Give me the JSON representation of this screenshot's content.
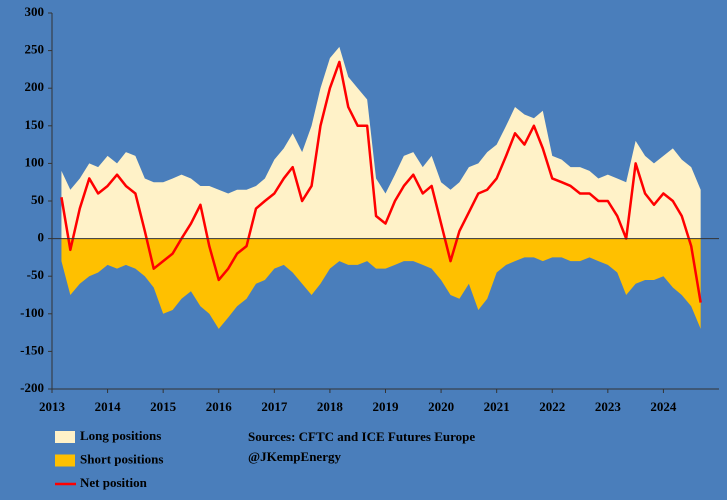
{
  "chart_data": {
    "type": "area-line",
    "x": [
      2013.17,
      2013.33,
      2013.5,
      2013.67,
      2013.83,
      2014.0,
      2014.17,
      2014.33,
      2014.5,
      2014.67,
      2014.83,
      2015.0,
      2015.17,
      2015.33,
      2015.5,
      2015.67,
      2015.83,
      2016.0,
      2016.17,
      2016.33,
      2016.5,
      2016.67,
      2016.83,
      2017.0,
      2017.17,
      2017.33,
      2017.5,
      2017.67,
      2017.83,
      2018.0,
      2018.17,
      2018.33,
      2018.5,
      2018.67,
      2018.83,
      2019.0,
      2019.17,
      2019.33,
      2019.5,
      2019.67,
      2019.83,
      2020.0,
      2020.17,
      2020.33,
      2020.5,
      2020.67,
      2020.83,
      2021.0,
      2021.17,
      2021.33,
      2021.5,
      2021.67,
      2021.83,
      2022.0,
      2022.17,
      2022.33,
      2022.5,
      2022.67,
      2022.83,
      2023.0,
      2023.17,
      2023.33,
      2023.5,
      2023.67,
      2023.83,
      2024.0,
      2024.17,
      2024.33,
      2024.5,
      2024.67
    ],
    "series": [
      {
        "name": "Long positions",
        "color": "#fff2c8",
        "kind": "area",
        "values": [
          90,
          65,
          80,
          100,
          95,
          110,
          100,
          115,
          110,
          80,
          75,
          75,
          80,
          85,
          80,
          70,
          70,
          65,
          60,
          65,
          65,
          70,
          80,
          105,
          120,
          140,
          115,
          150,
          200,
          240,
          255,
          215,
          200,
          185,
          80,
          60,
          85,
          110,
          115,
          95,
          110,
          75,
          65,
          75,
          95,
          100,
          115,
          125,
          150,
          175,
          165,
          160,
          170,
          110,
          105,
          95,
          95,
          90,
          80,
          85,
          80,
          75,
          130,
          110,
          100,
          110,
          120,
          105,
          95,
          65
        ]
      },
      {
        "name": "Short positions",
        "color": "#ffc000",
        "kind": "area",
        "values": [
          -30,
          -75,
          -60,
          -50,
          -45,
          -35,
          -40,
          -35,
          -40,
          -50,
          -65,
          -100,
          -95,
          -80,
          -70,
          -90,
          -100,
          -120,
          -105,
          -90,
          -80,
          -60,
          -55,
          -40,
          -35,
          -45,
          -60,
          -75,
          -60,
          -40,
          -30,
          -35,
          -35,
          -30,
          -40,
          -40,
          -35,
          -30,
          -30,
          -35,
          -40,
          -55,
          -75,
          -80,
          -60,
          -95,
          -80,
          -45,
          -35,
          -30,
          -25,
          -25,
          -30,
          -25,
          -25,
          -30,
          -30,
          -25,
          -30,
          -35,
          -45,
          -75,
          -60,
          -55,
          -55,
          -50,
          -65,
          -75,
          -90,
          -120
        ]
      },
      {
        "name": "Net position",
        "color": "#ff0000",
        "kind": "line",
        "values": [
          55,
          -15,
          40,
          80,
          60,
          70,
          85,
          70,
          60,
          10,
          -40,
          -30,
          -20,
          0,
          20,
          45,
          -10,
          -55,
          -40,
          -20,
          -10,
          40,
          50,
          60,
          80,
          95,
          50,
          70,
          150,
          200,
          235,
          175,
          150,
          150,
          30,
          20,
          50,
          70,
          85,
          60,
          70,
          20,
          -30,
          10,
          35,
          60,
          65,
          80,
          110,
          140,
          125,
          150,
          120,
          80,
          75,
          70,
          60,
          60,
          50,
          50,
          30,
          0,
          100,
          60,
          45,
          60,
          50,
          30,
          -10,
          -85
        ]
      }
    ],
    "xlim": [
      2013,
      2025
    ],
    "xticks": [
      2013,
      2014,
      2015,
      2016,
      2017,
      2018,
      2019,
      2020,
      2021,
      2022,
      2023,
      2024
    ],
    "ylim": [
      -200,
      300
    ],
    "yticks": [
      -200,
      -150,
      -100,
      -50,
      0,
      50,
      100,
      150,
      200,
      250,
      300
    ],
    "annotations": [
      "Sources: CFTC and ICE Futures Europe",
      "@JKempEnergy"
    ]
  }
}
